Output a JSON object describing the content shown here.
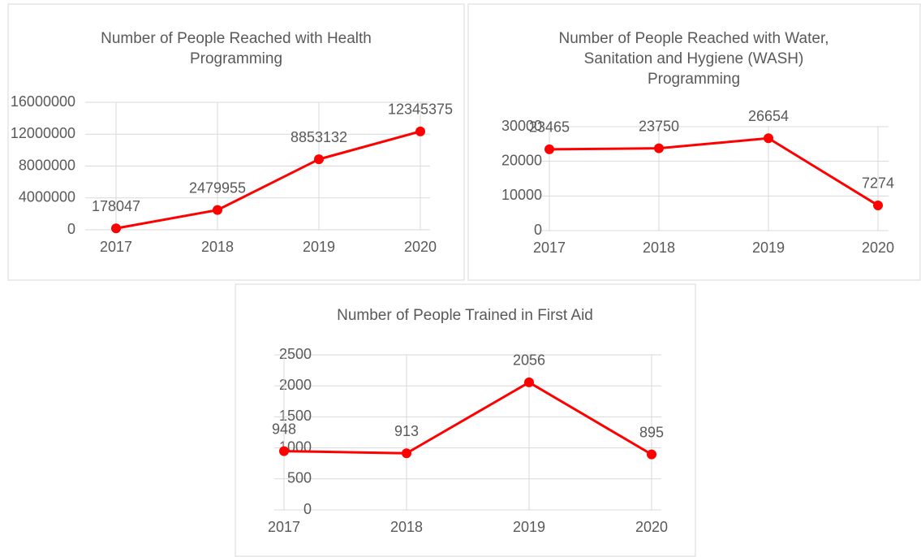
{
  "chart_data": [
    {
      "type": "line",
      "title": "Number of People Reached with Health Programming",
      "categories": [
        "2017",
        "2018",
        "2019",
        "2020"
      ],
      "series": [
        {
          "name": "Health",
          "color": "#ff0000",
          "values": [
            178047,
            2479955,
            8853132,
            12345375
          ]
        }
      ],
      "ylim": [
        0,
        16000000
      ],
      "yticks": [
        0,
        4000000,
        8000000,
        12000000,
        16000000
      ],
      "grid": true
    },
    {
      "type": "line",
      "title": "Number of People Reached with Water, Sanitation and Hygiene (WASH) Programming",
      "categories": [
        "2017",
        "2018",
        "2019",
        "2020"
      ],
      "series": [
        {
          "name": "WASH",
          "color": "#ff0000",
          "values": [
            23465,
            23750,
            26654,
            7274
          ]
        }
      ],
      "ylim": [
        0,
        30000
      ],
      "yticks": [
        0,
        10000,
        20000,
        30000
      ],
      "grid": true
    },
    {
      "type": "line",
      "title": "Number of People Trained in First Aid",
      "categories": [
        "2017",
        "2018",
        "2019",
        "2020"
      ],
      "series": [
        {
          "name": "First Aid",
          "color": "#ff0000",
          "values": [
            948,
            913,
            2056,
            895
          ]
        }
      ],
      "ylim": [
        0,
        2500
      ],
      "yticks": [
        0,
        500,
        1000,
        1500,
        2000,
        2500
      ],
      "grid": true
    }
  ]
}
